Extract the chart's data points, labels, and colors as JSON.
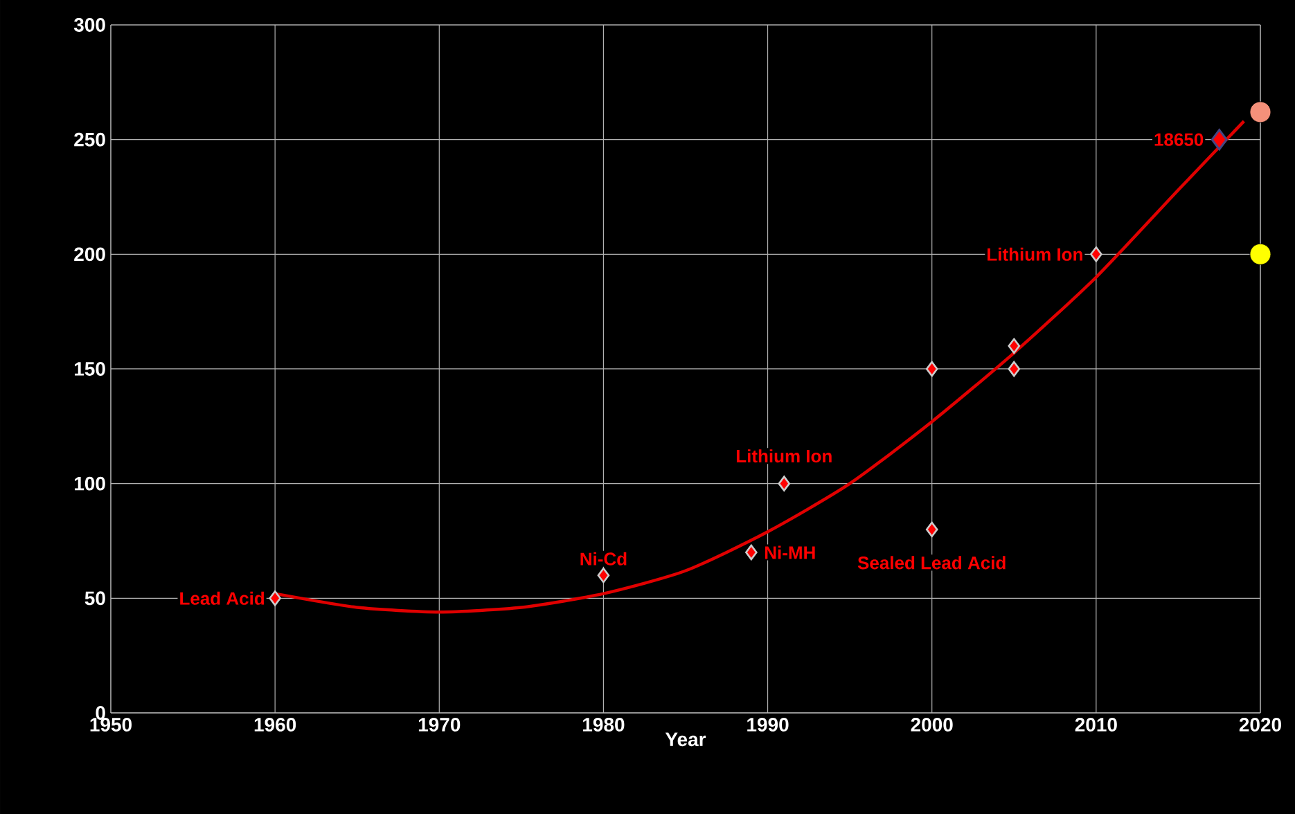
{
  "chart_data": {
    "type": "scatter",
    "xlabel": "Year",
    "xlim": [
      1950,
      2020
    ],
    "xticks": [
      1950,
      1960,
      1970,
      1980,
      1990,
      2000,
      2010,
      2020
    ],
    "ylim": [
      0,
      300
    ],
    "yticks": [
      0,
      50,
      100,
      150,
      200,
      250,
      300
    ],
    "grid": true,
    "marker": "diamond",
    "series": [
      {
        "type": "line",
        "color": "#e00000",
        "marker": "none",
        "line_style": "solid",
        "x": [
          1960,
          1965,
          1970,
          1975,
          1980,
          1985,
          1990,
          1995,
          2000,
          2005,
          2010,
          2015,
          2019
        ],
        "values": [
          52,
          46,
          44,
          46,
          52,
          62,
          79,
          100,
          127,
          157,
          190,
          228,
          258
        ]
      },
      {
        "color": "#ff0000",
        "x": [
          1960,
          1980,
          1989,
          1991,
          2000,
          2000,
          2005,
          2005,
          2010
        ],
        "values": [
          50,
          60,
          70,
          100,
          150,
          80,
          160,
          150,
          200
        ]
      },
      {
        "color": "#ff0000",
        "x": [
          2017.5
        ],
        "values": [
          250
        ]
      },
      {
        "color": "#f4907a",
        "marker": "circle",
        "x": [
          2020
        ],
        "values": [
          262
        ]
      },
      {
        "color": "#ffff00",
        "marker": "circle",
        "x": [
          2020
        ],
        "values": [
          200
        ]
      }
    ],
    "annotations": [
      {
        "text": "Lead Acid",
        "x": 1960,
        "y": 50
      },
      {
        "text": "Ni-Cd",
        "x": 1980,
        "y": 60
      },
      {
        "text": "Ni-MH",
        "x": 1989,
        "y": 70
      },
      {
        "text": "Lithium Ion",
        "x": 1991,
        "y": 100
      },
      {
        "text": "Sealed Lead Acid",
        "x": 2000,
        "y": 80
      },
      {
        "text": "Lithium Ion",
        "x": 2010,
        "y": 200
      },
      {
        "text": "18650",
        "x": 2017.5,
        "y": 250
      }
    ]
  }
}
